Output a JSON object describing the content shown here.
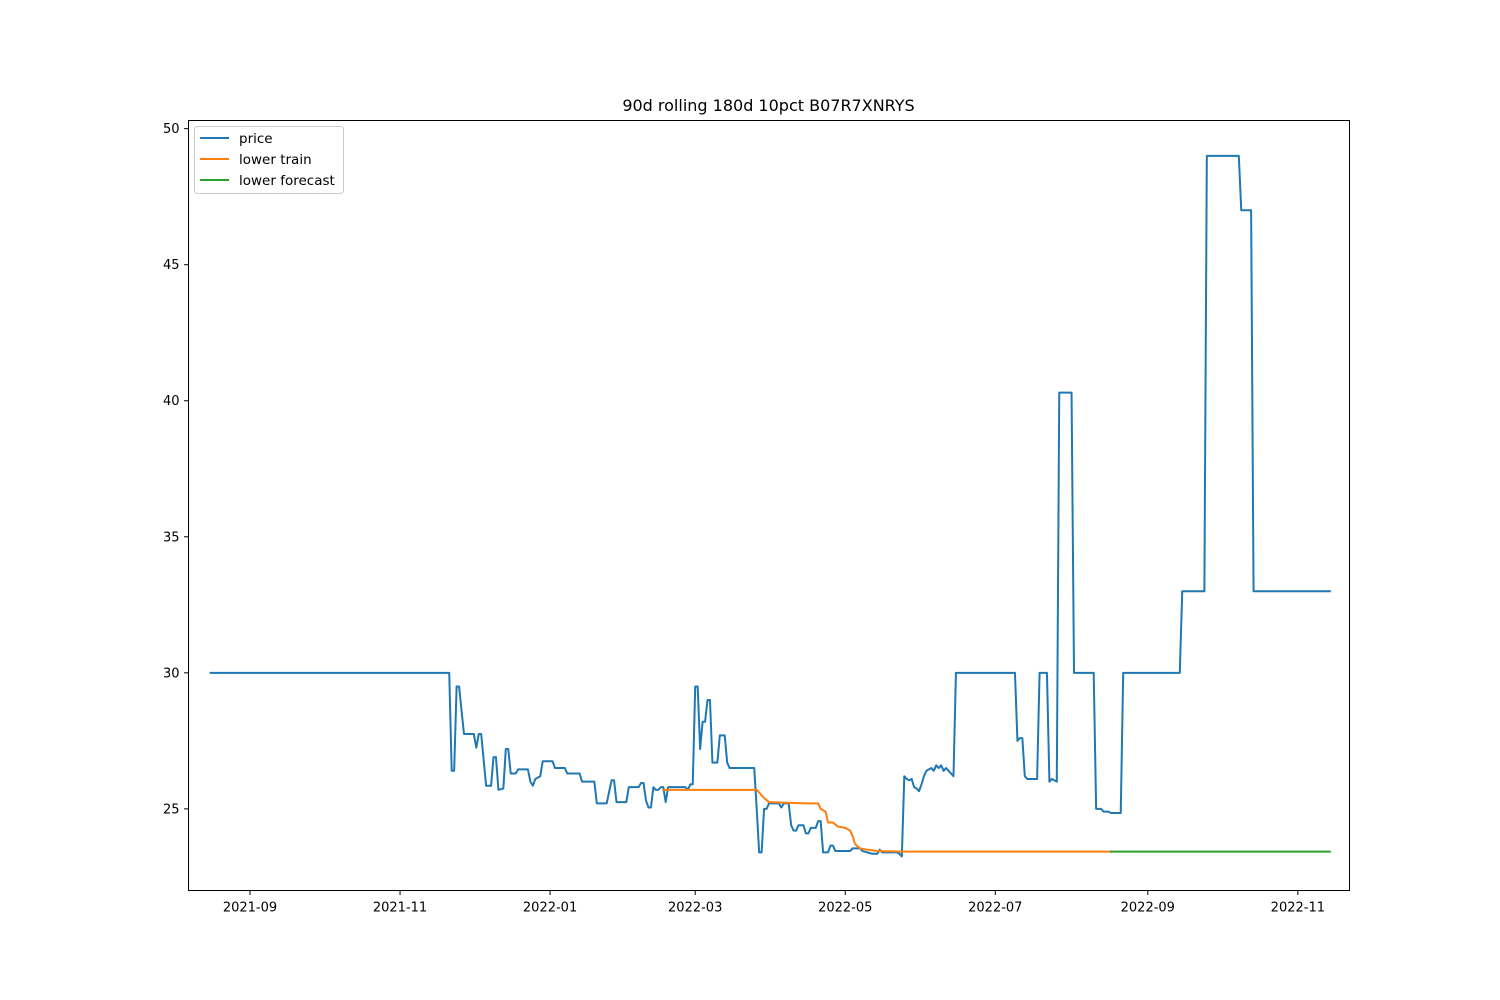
{
  "chart_data": {
    "type": "line",
    "title": "90d rolling 180d 10pct B07R7XNRYS",
    "xlabel": "",
    "ylabel": "",
    "x_type": "date",
    "xlim": [
      "2021-08-07",
      "2022-11-22"
    ],
    "ylim": [
      22,
      50.3
    ],
    "x_ticks": [
      "2021-09-01",
      "2021-11-01",
      "2022-01-01",
      "2022-03-01",
      "2022-05-01",
      "2022-07-01",
      "2022-09-01",
      "2022-11-01"
    ],
    "x_tick_labels": [
      "2021-09",
      "2021-11",
      "2022-01",
      "2022-03",
      "2022-05",
      "2022-07",
      "2022-09",
      "2022-11"
    ],
    "y_ticks": [
      25,
      30,
      35,
      40,
      45,
      50
    ],
    "y_tick_labels": [
      "25",
      "30",
      "35",
      "40",
      "45",
      "50"
    ],
    "grid": false,
    "legend_position": "top-left",
    "series": [
      {
        "name": "price",
        "color": "#1f77b4",
        "points": [
          [
            "2021-08-16",
            30.0
          ],
          [
            "2021-11-21",
            30.0
          ],
          [
            "2021-11-22",
            26.4
          ],
          [
            "2021-11-23",
            26.4
          ],
          [
            "2021-11-24",
            29.5
          ],
          [
            "2021-11-25",
            29.5
          ],
          [
            "2021-11-27",
            27.75
          ],
          [
            "2021-12-01",
            27.75
          ],
          [
            "2021-12-02",
            27.25
          ],
          [
            "2021-12-03",
            27.75
          ],
          [
            "2021-12-04",
            27.75
          ],
          [
            "2021-12-06",
            25.85
          ],
          [
            "2021-12-08",
            25.85
          ],
          [
            "2021-12-09",
            26.9
          ],
          [
            "2021-12-10",
            26.9
          ],
          [
            "2021-12-11",
            25.7
          ],
          [
            "2021-12-13",
            25.75
          ],
          [
            "2021-12-14",
            27.2
          ],
          [
            "2021-12-15",
            27.2
          ],
          [
            "2021-12-16",
            26.3
          ],
          [
            "2021-12-18",
            26.3
          ],
          [
            "2021-12-19",
            26.45
          ],
          [
            "2021-12-23",
            26.45
          ],
          [
            "2021-12-24",
            26.0
          ],
          [
            "2021-12-25",
            25.85
          ],
          [
            "2021-12-26",
            26.1
          ],
          [
            "2021-12-28",
            26.2
          ],
          [
            "2021-12-29",
            26.75
          ],
          [
            "2022-01-02",
            26.75
          ],
          [
            "2022-01-03",
            26.5
          ],
          [
            "2022-01-07",
            26.5
          ],
          [
            "2022-01-08",
            26.3
          ],
          [
            "2022-01-13",
            26.3
          ],
          [
            "2022-01-14",
            26.0
          ],
          [
            "2022-01-19",
            26.0
          ],
          [
            "2022-01-20",
            25.2
          ],
          [
            "2022-01-24",
            25.2
          ],
          [
            "2022-01-26",
            26.05
          ],
          [
            "2022-01-27",
            26.05
          ],
          [
            "2022-01-28",
            25.25
          ],
          [
            "2022-02-01",
            25.25
          ],
          [
            "2022-02-02",
            25.8
          ],
          [
            "2022-02-06",
            25.8
          ],
          [
            "2022-02-07",
            25.95
          ],
          [
            "2022-02-08",
            25.95
          ],
          [
            "2022-02-09",
            25.3
          ],
          [
            "2022-02-10",
            25.05
          ],
          [
            "2022-02-11",
            25.05
          ],
          [
            "2022-02-12",
            25.8
          ],
          [
            "2022-02-13",
            25.7
          ],
          [
            "2022-02-14",
            25.7
          ],
          [
            "2022-02-15",
            25.8
          ],
          [
            "2022-02-16",
            25.8
          ],
          [
            "2022-02-17",
            25.25
          ],
          [
            "2022-02-18",
            25.8
          ],
          [
            "2022-02-25",
            25.8
          ],
          [
            "2022-02-26",
            25.7
          ],
          [
            "2022-02-27",
            25.9
          ],
          [
            "2022-02-28",
            25.9
          ],
          [
            "2022-03-01",
            29.5
          ],
          [
            "2022-03-02",
            29.5
          ],
          [
            "2022-03-03",
            27.2
          ],
          [
            "2022-03-04",
            28.2
          ],
          [
            "2022-03-05",
            28.2
          ],
          [
            "2022-03-06",
            29.0
          ],
          [
            "2022-03-07",
            29.0
          ],
          [
            "2022-03-08",
            26.7
          ],
          [
            "2022-03-10",
            26.7
          ],
          [
            "2022-03-11",
            27.7
          ],
          [
            "2022-03-13",
            27.7
          ],
          [
            "2022-03-14",
            26.7
          ],
          [
            "2022-03-15",
            26.5
          ],
          [
            "2022-03-25",
            26.5
          ],
          [
            "2022-03-26",
            25.0
          ],
          [
            "2022-03-27",
            23.4
          ],
          [
            "2022-03-28",
            23.4
          ],
          [
            "2022-03-29",
            25.0
          ],
          [
            "2022-03-30",
            25.0
          ],
          [
            "2022-03-31",
            25.2
          ],
          [
            "2022-04-01",
            25.2
          ],
          [
            "2022-04-04",
            25.2
          ],
          [
            "2022-04-05",
            25.05
          ],
          [
            "2022-04-06",
            25.2
          ],
          [
            "2022-04-08",
            25.2
          ],
          [
            "2022-04-09",
            24.4
          ],
          [
            "2022-04-10",
            24.2
          ],
          [
            "2022-04-11",
            24.2
          ],
          [
            "2022-04-12",
            24.4
          ],
          [
            "2022-04-14",
            24.4
          ],
          [
            "2022-04-15",
            24.1
          ],
          [
            "2022-04-16",
            24.1
          ],
          [
            "2022-04-17",
            24.3
          ],
          [
            "2022-04-19",
            24.3
          ],
          [
            "2022-04-20",
            24.55
          ],
          [
            "2022-04-21",
            24.55
          ],
          [
            "2022-04-22",
            23.4
          ],
          [
            "2022-04-24",
            23.4
          ],
          [
            "2022-04-25",
            23.65
          ],
          [
            "2022-04-26",
            23.65
          ],
          [
            "2022-04-27",
            23.45
          ],
          [
            "2022-05-03",
            23.45
          ],
          [
            "2022-05-04",
            23.55
          ],
          [
            "2022-05-07",
            23.55
          ],
          [
            "2022-05-08",
            23.45
          ],
          [
            "2022-05-12",
            23.35
          ],
          [
            "2022-05-14",
            23.35
          ],
          [
            "2022-05-15",
            23.5
          ],
          [
            "2022-05-16",
            23.4
          ],
          [
            "2022-05-22",
            23.4
          ],
          [
            "2022-05-23",
            23.35
          ],
          [
            "2022-05-24",
            23.25
          ],
          [
            "2022-05-25",
            26.2
          ],
          [
            "2022-05-26",
            26.1
          ],
          [
            "2022-05-27",
            26.05
          ],
          [
            "2022-05-28",
            26.1
          ],
          [
            "2022-05-29",
            25.8
          ],
          [
            "2022-05-30",
            25.75
          ],
          [
            "2022-05-31",
            25.65
          ],
          [
            "2022-06-01",
            25.9
          ],
          [
            "2022-06-02",
            26.2
          ],
          [
            "2022-06-03",
            26.4
          ],
          [
            "2022-06-05",
            26.5
          ],
          [
            "2022-06-06",
            26.4
          ],
          [
            "2022-06-07",
            26.6
          ],
          [
            "2022-06-08",
            26.5
          ],
          [
            "2022-06-09",
            26.6
          ],
          [
            "2022-06-10",
            26.4
          ],
          [
            "2022-06-11",
            26.5
          ],
          [
            "2022-06-13",
            26.3
          ],
          [
            "2022-06-14",
            26.2
          ],
          [
            "2022-06-15",
            30.0
          ],
          [
            "2022-07-09",
            30.0
          ],
          [
            "2022-07-10",
            27.5
          ],
          [
            "2022-07-11",
            27.6
          ],
          [
            "2022-07-12",
            27.6
          ],
          [
            "2022-07-13",
            26.2
          ],
          [
            "2022-07-14",
            26.1
          ],
          [
            "2022-07-18",
            26.1
          ],
          [
            "2022-07-19",
            30.0
          ],
          [
            "2022-07-22",
            30.0
          ],
          [
            "2022-07-23",
            26.0
          ],
          [
            "2022-07-24",
            26.1
          ],
          [
            "2022-07-26",
            26.0
          ],
          [
            "2022-07-27",
            40.3
          ],
          [
            "2022-08-01",
            40.3
          ],
          [
            "2022-08-02",
            30.0
          ],
          [
            "2022-08-10",
            30.0
          ],
          [
            "2022-08-11",
            25.0
          ],
          [
            "2022-08-13",
            25.0
          ],
          [
            "2022-08-14",
            24.9
          ],
          [
            "2022-08-16",
            24.9
          ],
          [
            "2022-08-17",
            24.85
          ],
          [
            "2022-08-21",
            24.85
          ],
          [
            "2022-08-22",
            30.0
          ],
          [
            "2022-09-14",
            30.0
          ],
          [
            "2022-09-15",
            33.0
          ],
          [
            "2022-09-24",
            33.0
          ],
          [
            "2022-09-25",
            49.0
          ],
          [
            "2022-10-08",
            49.0
          ],
          [
            "2022-10-09",
            47.0
          ],
          [
            "2022-10-13",
            47.0
          ],
          [
            "2022-10-14",
            33.0
          ],
          [
            "2022-11-14",
            33.0
          ]
        ]
      },
      {
        "name": "lower train",
        "color": "#ff7f0e",
        "points": [
          [
            "2022-02-16",
            25.7
          ],
          [
            "2022-03-26",
            25.7
          ],
          [
            "2022-03-27",
            25.6
          ],
          [
            "2022-03-29",
            25.4
          ],
          [
            "2022-03-31",
            25.25
          ],
          [
            "2022-04-15",
            25.2
          ],
          [
            "2022-04-20",
            25.2
          ],
          [
            "2022-04-21",
            25.0
          ],
          [
            "2022-04-23",
            24.9
          ],
          [
            "2022-04-24",
            24.5
          ],
          [
            "2022-04-26",
            24.5
          ],
          [
            "2022-04-28",
            24.35
          ],
          [
            "2022-05-01",
            24.3
          ],
          [
            "2022-05-03",
            24.2
          ],
          [
            "2022-05-04",
            24.0
          ],
          [
            "2022-05-05",
            23.7
          ],
          [
            "2022-05-07",
            23.55
          ],
          [
            "2022-05-10",
            23.5
          ],
          [
            "2022-05-14",
            23.45
          ],
          [
            "2022-05-24",
            23.43
          ],
          [
            "2022-08-17",
            23.43
          ]
        ]
      },
      {
        "name": "lower forecast",
        "color": "#2ca02c",
        "points": [
          [
            "2022-08-17",
            23.43
          ],
          [
            "2022-11-14",
            23.43
          ]
        ]
      }
    ]
  }
}
